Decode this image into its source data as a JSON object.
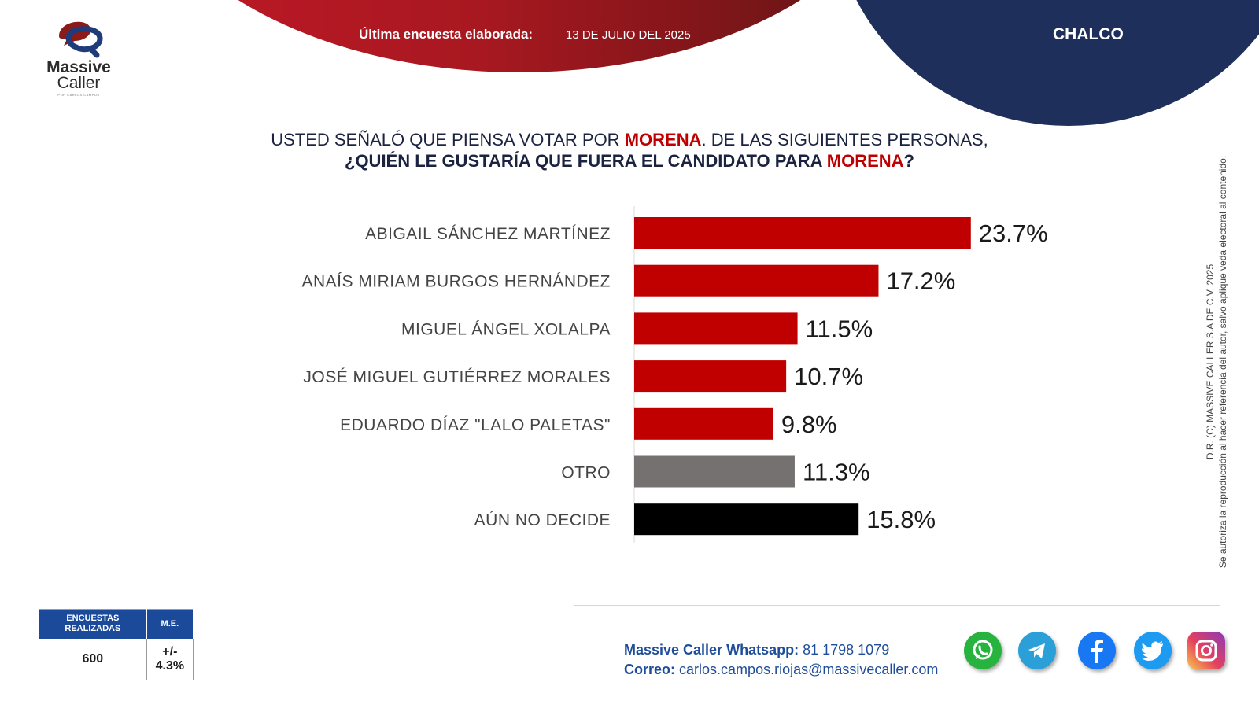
{
  "brand": {
    "line1": "Massive",
    "line2": "Caller",
    "tagline": "POR CARLOS CAMPOS"
  },
  "header": {
    "survey_label": "Última encuesta elaborada:",
    "survey_date": "13 DE JULIO DEL 2025",
    "city": "CHALCO"
  },
  "question": {
    "line1_pre": "USTED SEÑALÓ QUE PIENSA VOTAR POR ",
    "party": "MORENA",
    "line1_post": ". DE LAS SIGUIENTES PERSONAS,",
    "line2_pre": "¿QUIÉN LE GUSTARÍA QUE FUERA EL CANDIDATO PARA ",
    "line2_post": "?"
  },
  "chart_data": {
    "type": "bar",
    "orientation": "horizontal",
    "title": "USTED SEÑALÓ QUE PIENSA VOTAR POR MORENA. DE LAS SIGUIENTES PERSONAS, ¿QUIÉN LE GUSTARÍA QUE FUERA EL CANDIDATO PARA MORENA?",
    "categories": [
      "ABIGAIL SÁNCHEZ MARTÍNEZ",
      "ANAÍS MIRIAM BURGOS HERNÁNDEZ",
      "MIGUEL ÁNGEL XOLALPA",
      "JOSÉ MIGUEL GUTIÉRREZ MORALES",
      "EDUARDO DÍAZ \"LALO PALETAS\"",
      "OTRO",
      "AÚN NO DECIDE"
    ],
    "values": [
      23.7,
      17.2,
      11.5,
      10.7,
      9.8,
      11.3,
      15.8
    ],
    "value_labels": [
      "23.7%",
      "17.2%",
      "11.5%",
      "10.7%",
      "9.8%",
      "11.3%",
      "15.8%"
    ],
    "unit": "%",
    "colors": [
      "#c00000",
      "#c00000",
      "#c00000",
      "#c00000",
      "#c00000",
      "#767171",
      "#000000"
    ],
    "grid": false,
    "legend": "none"
  },
  "stats": {
    "col1_header": "ENCUESTAS REALIZADAS",
    "col2_header": "M.E.",
    "col1_value": "600",
    "col2_value": "+/- 4.3%"
  },
  "contact": {
    "whatsapp_label": "Massive Caller Whatsapp:",
    "whatsapp_number": "81 1798 1079",
    "email_label": "Correo:",
    "email": "carlos.campos.riojas@massivecaller.com"
  },
  "copyright": {
    "line1": "D.R. (C) MASSIVE CALLER S.A DE C.V. 2025",
    "line2": "Se autoriza la reproducción al hacer referencia del autor, salvo aplique veda electoral al contenido."
  },
  "social_icons": [
    "whatsapp-icon",
    "telegram-icon",
    "facebook-icon",
    "twitter-icon",
    "instagram-icon"
  ],
  "colors": {
    "accent_red": "#c00000",
    "navy": "#1f2f5c",
    "blue": "#1a4a99"
  }
}
